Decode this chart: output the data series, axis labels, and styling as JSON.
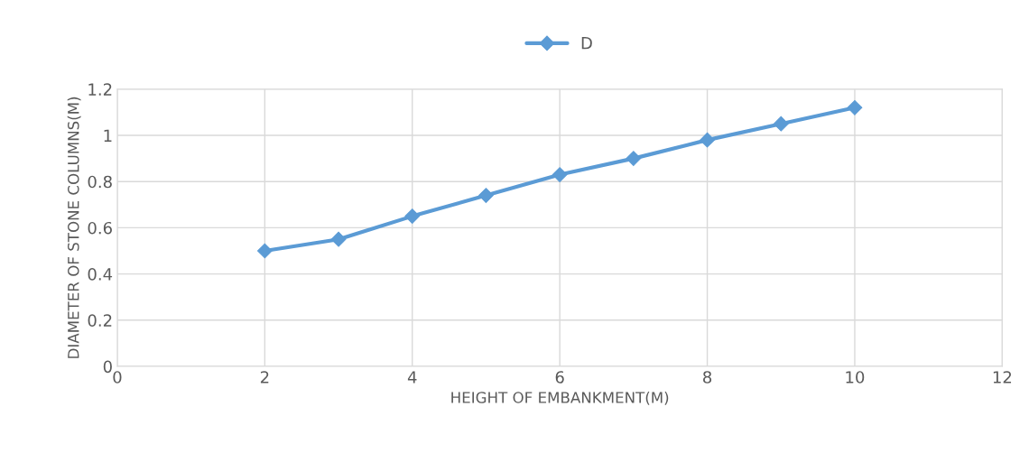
{
  "chart_data": {
    "type": "line",
    "xlabel": "HEIGHT OF EMBANKMENT(M)",
    "ylabel": "DIAMETER OF STONE COLUMNS(M)",
    "x": [
      2,
      3,
      4,
      5,
      6,
      7,
      8,
      9,
      10
    ],
    "series": [
      {
        "name": "D",
        "color": "#5b9bd5",
        "values": [
          0.5,
          0.55,
          0.65,
          0.74,
          0.83,
          0.9,
          0.98,
          1.05,
          1.12
        ]
      }
    ],
    "xlim": [
      0,
      12
    ],
    "xticks": [
      0,
      2,
      4,
      6,
      8,
      10,
      12
    ],
    "ylim": [
      0,
      1.2
    ],
    "yticks": [
      0,
      {
        "value": 0.2,
        "label": "0.2"
      },
      {
        "value": 0.4,
        "label": "0.4"
      },
      {
        "value": 0.6,
        "label": "0.6"
      },
      {
        "value": 0.8,
        "label": "0.8"
      },
      1,
      {
        "value": 1.2,
        "label": "1.2"
      }
    ],
    "grid": true,
    "legend": "top",
    "marker": "diamond",
    "line_style": "solid"
  }
}
